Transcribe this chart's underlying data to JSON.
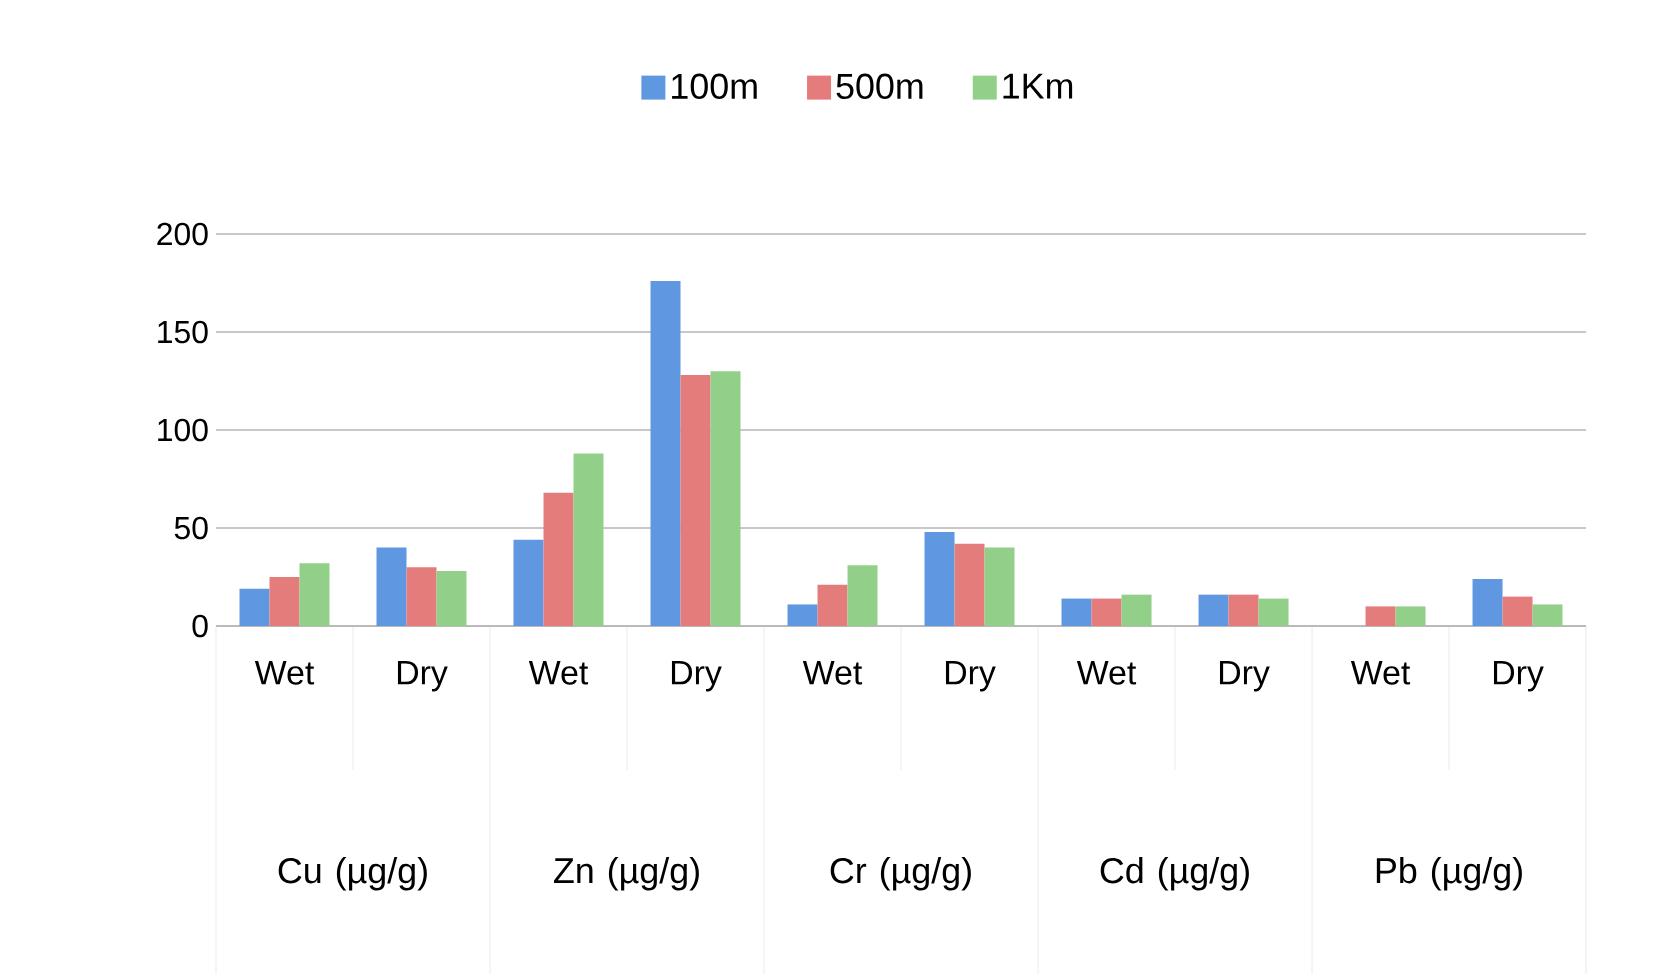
{
  "chart_data": {
    "type": "bar",
    "categories": [
      "Wet",
      "Dry",
      "Wet",
      "Dry",
      "Wet",
      "Dry",
      "Wet",
      "Dry",
      "Wet",
      "Dry"
    ],
    "series": [
      {
        "name": "100m",
        "color": "#5f97e0",
        "values": [
          19,
          40,
          44,
          176,
          11,
          48,
          14,
          16,
          null,
          24
        ]
      },
      {
        "name": "500m",
        "color": "#e57c7c",
        "values": [
          25,
          30,
          68,
          128,
          21,
          42,
          14,
          16,
          10,
          15
        ]
      },
      {
        "name": "1Km",
        "color": "#92d08a",
        "values": [
          32,
          28,
          88,
          130,
          31,
          40,
          16,
          14,
          10,
          11
        ]
      }
    ],
    "annotations": [
      "Cu (µg/g)",
      "Zn (µg/g)",
      "Cr (µg/g)",
      "Cd (µg/g)",
      "Pb (µg/g)"
    ],
    "ylim": [
      0,
      200
    ],
    "yticks": [
      0,
      50,
      100,
      150,
      200
    ],
    "grid": "y",
    "legend": "top"
  }
}
